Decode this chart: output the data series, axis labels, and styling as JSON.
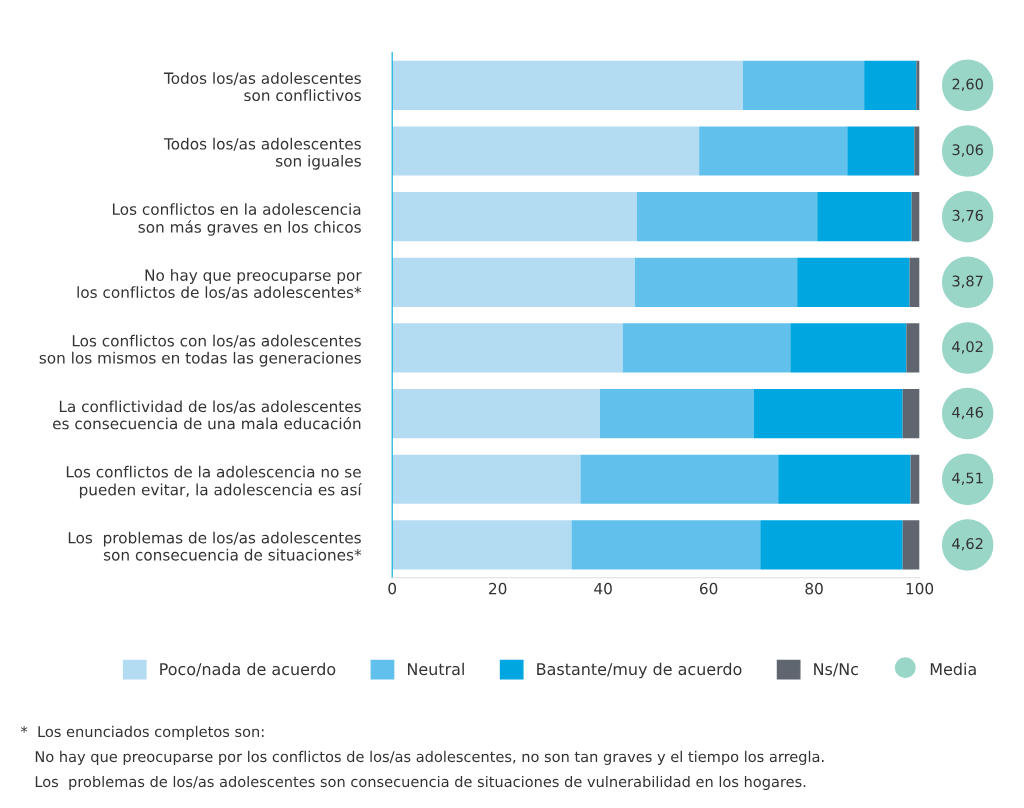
{
  "chart_data": [
    {
      "type": "bar",
      "orientation": "horizontal",
      "stacked": true,
      "categories": [
        "Todos los/as adolescentes\nson conflictivos",
        "Todos los/as adolescentes\nson iguales",
        "Los conflictos en la adolescencia\nson más graves en los chicos",
        "No hay que preocuparse por\nlos conflictos de los/as adolescentes*",
        "Los conflictos con los/as adolescentes\nson los mismos en todas las generaciones",
        "La conflictividad de los/as adolescentes\nes consecuencia de una mala educación",
        "Los conflictos de la adolescencia no se\npueden evitar, la adolescencia es así",
        "Los  problemas de los/as adolescentes\nson consecuencia de situaciones*"
      ],
      "series": [
        {
          "name": "Poco/nada de acuerdo",
          "color": "#b3dcf3",
          "values": [
            66.5,
            58.2,
            46.4,
            46.0,
            43.7,
            39.4,
            35.7,
            34.0
          ]
        },
        {
          "name": "Neutral",
          "color": "#62c1ec",
          "values": [
            23.0,
            28.1,
            34.2,
            30.8,
            31.8,
            29.2,
            37.5,
            35.8
          ]
        },
        {
          "name": "Bastante/muy de acuerdo",
          "color": "#00a6e0",
          "values": [
            9.9,
            12.7,
            17.9,
            21.3,
            22.0,
            28.2,
            25.1,
            27.0
          ]
        },
        {
          "name": "Ns/Nc",
          "color": "#5f6670",
          "values": [
            0.6,
            1.0,
            1.5,
            1.9,
            2.5,
            3.2,
            1.7,
            3.2
          ]
        }
      ],
      "xlim": [
        0,
        100
      ],
      "xticks": [
        0,
        20,
        40,
        60,
        80,
        100
      ],
      "grid": false,
      "legend": "bottom",
      "annotations": [
        "*  Los enunciados completos son:",
        "   No hay que preocuparse por los conflictos de los/as adolescentes, no son tan graves y el tiempo los arregla.",
        "   Los  problemas de los/as adolescentes son consecuencia de situaciones de vulnerabilidad en los hogares."
      ]
    },
    {
      "type": "other",
      "series": [
        {
          "name": "Media",
          "color": "#9ad6c8",
          "values": [
            2.6,
            3.06,
            3.76,
            3.87,
            4.02,
            4.46,
            4.51,
            4.62
          ],
          "value_labels": [
            "2,60",
            "3,06",
            "3,76",
            "3,87",
            "4,02",
            "4,46",
            "4,51",
            "4,62"
          ]
        }
      ]
    }
  ]
}
